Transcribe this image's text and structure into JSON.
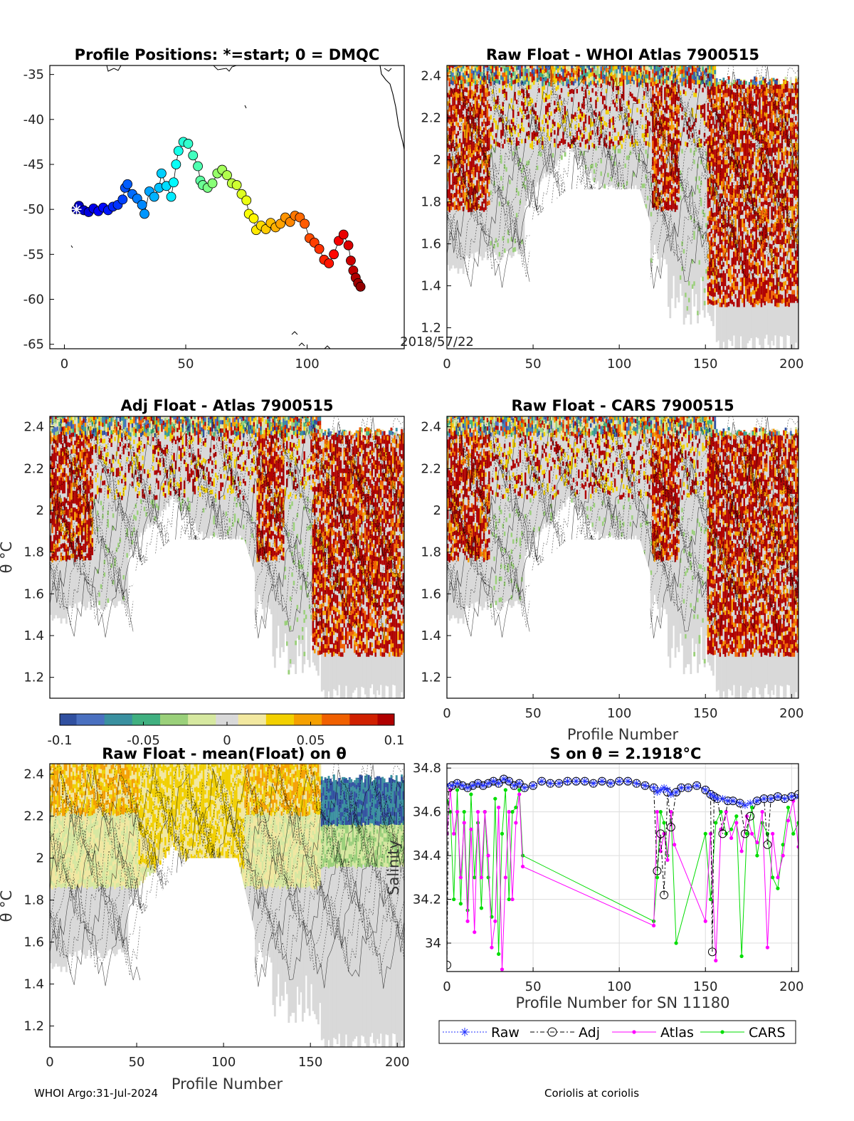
{
  "colors": {
    "diverging": [
      "#3050a0",
      "#4a70c0",
      "#3a90a0",
      "#40b080",
      "#9ad07a",
      "#d6e8a0",
      "#d9d9d9",
      "#f2e8a0",
      "#f2d000",
      "#f5a000",
      "#f06000",
      "#d02000",
      "#b00000"
    ],
    "raw": "#2030ff",
    "adj": "#000000",
    "atlas": "#ff00ff",
    "cars": "#00dd00",
    "contour": "#000000"
  },
  "footer": {
    "left": "WHOI Argo:31-Jul-2024",
    "right": "Coriolis at coriolis"
  },
  "chart_data": [
    {
      "id": "positions",
      "type": "scatter",
      "title": "Profile Positions: *=start; 0 = DMQC",
      "annotation": "2018/57/22",
      "xlim": [
        -6,
        140
      ],
      "ylim": [
        -65.5,
        -34
      ],
      "xticks": [
        "0",
        "50",
        "100"
      ],
      "yticks": [
        "-35",
        "-40",
        "-45",
        "-50",
        "-55",
        "-60",
        "-65"
      ],
      "points": [
        [
          5,
          -50
        ],
        [
          6,
          -49.6
        ],
        [
          8,
          -50.1
        ],
        [
          10,
          -50.3
        ],
        [
          12,
          -49.9
        ],
        [
          14,
          -50.2
        ],
        [
          16,
          -49.8
        ],
        [
          18,
          -50.1
        ],
        [
          20,
          -49.7
        ],
        [
          22,
          -49.5
        ],
        [
          24,
          -48.9
        ],
        [
          25,
          -47.6
        ],
        [
          26,
          -47.2
        ],
        [
          28,
          -48.3
        ],
        [
          30,
          -48.8
        ],
        [
          32,
          -49.5
        ],
        [
          33,
          -50.5
        ],
        [
          35,
          -48.0
        ],
        [
          37,
          -48.6
        ],
        [
          39,
          -47.6
        ],
        [
          40,
          -46.0
        ],
        [
          42,
          -47.4
        ],
        [
          44,
          -48.6
        ],
        [
          45,
          -47.0
        ],
        [
          46,
          -45.0
        ],
        [
          47,
          -43.5
        ],
        [
          49,
          -42.5
        ],
        [
          51,
          -42.7
        ],
        [
          53,
          -44.0
        ],
        [
          55,
          -45.2
        ],
        [
          56,
          -46.8
        ],
        [
          57,
          -47.3
        ],
        [
          59,
          -47.6
        ],
        [
          61,
          -47.1
        ],
        [
          63,
          -46.0
        ],
        [
          65,
          -45.6
        ],
        [
          67,
          -46.2
        ],
        [
          69,
          -47.1
        ],
        [
          71,
          -47.3
        ],
        [
          73,
          -48.3
        ],
        [
          75,
          -49.0
        ],
        [
          76,
          -50.5
        ],
        [
          78,
          -51.0
        ],
        [
          79,
          -52.3
        ],
        [
          81,
          -51.8
        ],
        [
          83,
          -52.2
        ],
        [
          85,
          -51.5
        ],
        [
          87,
          -52.0
        ],
        [
          89,
          -51.6
        ],
        [
          91,
          -50.9
        ],
        [
          93,
          -51.4
        ],
        [
          95,
          -50.7
        ],
        [
          97,
          -50.9
        ],
        [
          99,
          -51.6
        ],
        [
          101,
          -53.2
        ],
        [
          103,
          -53.7
        ],
        [
          105,
          -54.4
        ],
        [
          107,
          -55.6
        ],
        [
          109,
          -56.0
        ],
        [
          111,
          -55.0
        ],
        [
          113,
          -53.5
        ],
        [
          115,
          -52.8
        ],
        [
          117,
          -54.0
        ],
        [
          118,
          -55.7
        ],
        [
          119,
          -56.8
        ],
        [
          120,
          -57.6
        ],
        [
          121,
          -58.2
        ],
        [
          122,
          -58.6
        ]
      ]
    },
    {
      "id": "raw-atlas",
      "type": "heatmap",
      "title": "Raw Float - WHOI Atlas  7900515",
      "xlim": [
        0,
        204
      ],
      "ylim": [
        1.1,
        2.45
      ],
      "xticks": [
        "0",
        "50",
        "100",
        "150",
        "200"
      ],
      "yticks": [
        "1.2",
        "1.4",
        "1.6",
        "1.8",
        "2",
        "2.2",
        "2.4"
      ],
      "colorbar": {
        "ticks": [
          "-0.1",
          "-0.05",
          "0",
          "0.05",
          "0.1"
        ],
        "range": [
          -0.1,
          0.1
        ]
      }
    },
    {
      "id": "adj-atlas",
      "type": "heatmap",
      "title": "Adj Float - Atlas  7900515",
      "ylabel": "θ °C",
      "xlim": [
        0,
        204
      ],
      "ylim": [
        1.1,
        2.45
      ],
      "yticks": [
        "1.2",
        "1.4",
        "1.6",
        "1.8",
        "2",
        "2.2",
        "2.4"
      ]
    },
    {
      "id": "raw-cars",
      "type": "heatmap",
      "title": "Raw Float - CARS  7900515",
      "xlabel": "Profile Number",
      "xlim": [
        0,
        204
      ],
      "ylim": [
        1.1,
        2.45
      ],
      "xticks": [
        "0",
        "50",
        "100",
        "150",
        "200"
      ],
      "yticks": [
        "1.2",
        "1.4",
        "1.6",
        "1.8",
        "2",
        "2.2",
        "2.4"
      ]
    },
    {
      "id": "raw-mean",
      "type": "heatmap",
      "title": "Raw Float - mean(Float) on θ",
      "xlabel": "Profile Number",
      "ylabel": "θ °C",
      "xlim": [
        0,
        204
      ],
      "ylim": [
        1.1,
        2.45
      ],
      "xticks": [
        "0",
        "50",
        "100",
        "150",
        "200"
      ],
      "yticks": [
        "1.2",
        "1.4",
        "1.6",
        "1.8",
        "2",
        "2.2",
        "2.4"
      ]
    },
    {
      "id": "salinity",
      "type": "line",
      "title": "S on θ = 2.1918°C",
      "xlabel": "Profile Number for SN 11180",
      "ylabel": "Salinity",
      "xlim": [
        0,
        204
      ],
      "ylim": [
        33.87,
        34.82
      ],
      "xticks": [
        "0",
        "50",
        "100",
        "150",
        "200"
      ],
      "yticks": [
        "34",
        "34.2",
        "34.4",
        "34.6",
        "34.8"
      ],
      "grid": true,
      "legend": {
        "placement": "bottom",
        "entries": [
          "Raw",
          "Adj",
          "Atlas",
          "CARS"
        ]
      },
      "series": [
        {
          "name": "Raw",
          "x": [
            0,
            3,
            6,
            9,
            12,
            15,
            18,
            21,
            24,
            27,
            30,
            33,
            36,
            39,
            42,
            45,
            50,
            55,
            60,
            65,
            70,
            75,
            80,
            85,
            90,
            95,
            100,
            105,
            110,
            115,
            120,
            122,
            124,
            126,
            128,
            130,
            133,
            136,
            140,
            145,
            150,
            153,
            155,
            157,
            160,
            163,
            166,
            170,
            173,
            176,
            180,
            184,
            188,
            192,
            196,
            200,
            204
          ],
          "y": [
            34.72,
            34.72,
            34.73,
            34.72,
            34.71,
            34.72,
            34.73,
            34.72,
            34.73,
            34.74,
            34.73,
            34.75,
            34.74,
            34.72,
            34.73,
            34.71,
            34.72,
            34.74,
            34.73,
            34.73,
            34.74,
            34.74,
            34.74,
            34.73,
            34.74,
            34.73,
            34.74,
            34.74,
            34.73,
            34.72,
            34.71,
            34.69,
            34.7,
            34.71,
            34.7,
            34.68,
            34.69,
            34.71,
            34.71,
            34.72,
            34.7,
            34.68,
            34.67,
            34.66,
            34.66,
            34.65,
            34.65,
            34.64,
            34.63,
            34.64,
            34.65,
            34.66,
            34.66,
            34.67,
            34.66,
            34.67,
            34.67
          ]
        },
        {
          "name": "Adj",
          "x": [
            0,
            1,
            3,
            6,
            9,
            12,
            15,
            18,
            21,
            24,
            27,
            30,
            33,
            36,
            39,
            42,
            45,
            50,
            55,
            60,
            65,
            70,
            75,
            80,
            85,
            90,
            95,
            100,
            105,
            110,
            115,
            120,
            122,
            124,
            126,
            128,
            130,
            133,
            136,
            140,
            145,
            150,
            153,
            154,
            155,
            157,
            160,
            163,
            166,
            170,
            173,
            176,
            180,
            184,
            186,
            188,
            192,
            196,
            200,
            204
          ],
          "y": [
            33.9,
            34.71,
            34.72,
            34.73,
            34.72,
            34.71,
            34.72,
            34.73,
            34.72,
            34.73,
            34.74,
            34.73,
            34.75,
            34.74,
            34.72,
            34.73,
            34.71,
            34.72,
            34.74,
            34.73,
            34.73,
            34.74,
            34.74,
            34.74,
            34.73,
            34.74,
            34.73,
            34.74,
            34.74,
            34.73,
            34.72,
            34.71,
            34.33,
            34.5,
            34.22,
            34.69,
            34.53,
            34.69,
            34.71,
            34.71,
            34.72,
            34.7,
            34.68,
            33.96,
            34.67,
            34.66,
            34.5,
            34.65,
            34.65,
            34.64,
            34.5,
            34.58,
            34.65,
            34.66,
            34.45,
            34.66,
            34.67,
            34.66,
            34.67,
            34.68
          ]
        },
        {
          "name": "Atlas",
          "x": [
            0,
            2,
            4,
            6,
            8,
            10,
            12,
            14,
            16,
            18,
            20,
            22,
            24,
            26,
            28,
            30,
            32,
            34,
            36,
            38,
            40,
            42,
            44,
            120,
            122,
            124,
            126,
            128,
            130,
            132,
            150,
            153,
            156,
            159,
            162,
            165,
            168,
            171,
            174,
            177,
            180,
            183,
            186,
            189,
            192,
            195,
            198,
            201,
            204
          ],
          "y": [
            34.5,
            34.7,
            34.5,
            34.6,
            34.3,
            34.55,
            34.1,
            34.52,
            34.05,
            34.6,
            34.3,
            34.6,
            34.4,
            33.98,
            34.1,
            34.62,
            33.88,
            34.3,
            34.6,
            34.2,
            34.55,
            34.68,
            34.35,
            34.08,
            34.6,
            34.42,
            34.5,
            34.38,
            34.6,
            34.45,
            34.1,
            34.5,
            33.92,
            34.52,
            34.6,
            34.48,
            34.55,
            34.42,
            34.58,
            34.5,
            34.46,
            34.6,
            33.98,
            34.5,
            34.3,
            34.4,
            34.56,
            34.65,
            34.44
          ]
        },
        {
          "name": "CARS",
          "x": [
            0,
            2,
            4,
            6,
            8,
            10,
            12,
            14,
            16,
            18,
            20,
            22,
            24,
            26,
            28,
            30,
            32,
            34,
            36,
            38,
            40,
            42,
            44,
            120,
            122,
            124,
            126,
            128,
            130,
            133,
            150,
            153,
            156,
            159,
            162,
            165,
            168,
            171,
            174,
            177,
            180,
            183,
            186,
            189,
            192,
            195,
            198,
            201,
            204
          ],
          "y": [
            34.65,
            34.6,
            34.2,
            34.7,
            34.18,
            34.6,
            34.15,
            34.68,
            34.3,
            34.55,
            34.16,
            34.6,
            34.3,
            34.12,
            34.66,
            33.95,
            34.5,
            34.7,
            34.2,
            34.6,
            34.62,
            34.7,
            34.4,
            34.1,
            34.3,
            34.6,
            34.55,
            34.4,
            34.6,
            34.0,
            34.5,
            34.2,
            34.55,
            34.6,
            34.5,
            34.52,
            34.58,
            33.94,
            34.5,
            34.62,
            34.4,
            34.55,
            34.5,
            34.3,
            34.25,
            34.45,
            34.62,
            34.5,
            34.55
          ]
        }
      ]
    }
  ]
}
